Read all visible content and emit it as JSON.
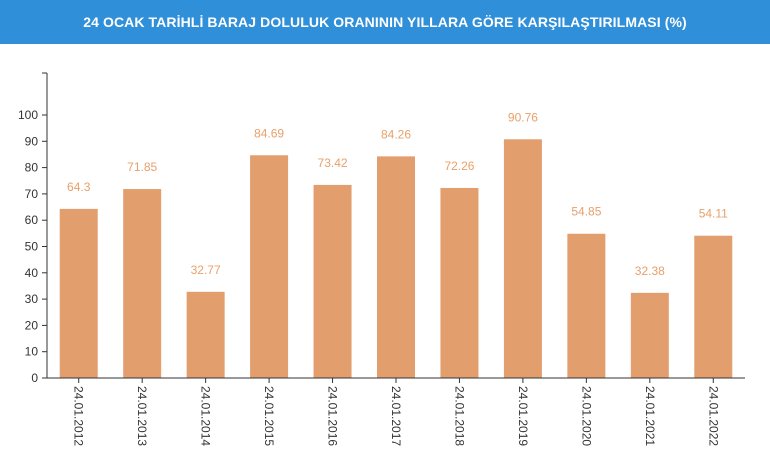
{
  "header": {
    "title": "24 OCAK TARİHLİ BARAJ DOLULUK ORANININ YILLARA GÖRE KARŞILAŞTIRILMASI (%)"
  },
  "colors": {
    "header_bg": "#2f8fd8",
    "bar": "#e39e6e",
    "data_label": "#e8a06a"
  },
  "chart_data": {
    "type": "bar",
    "title": "24 OCAK TARİHLİ BARAJ DOLULUK ORANININ YILLARA GÖRE KARŞILAŞTIRILMASI (%)",
    "categories": [
      "24.01.2012",
      "24.01.2013",
      "24.01.2014",
      "24.01.2015",
      "24.01.2016",
      "24.01.2017",
      "24.01.2018",
      "24.01.2019",
      "24.01.2020",
      "24.01.2021",
      "24.01.2022"
    ],
    "values": [
      64.3,
      71.85,
      32.77,
      84.69,
      73.42,
      84.26,
      72.26,
      90.76,
      54.85,
      32.38,
      54.11
    ],
    "data_labels": [
      "64.3",
      "71.85",
      "32.77",
      "84.69",
      "73.42",
      "84.26",
      "72.26",
      "90.76",
      "54.85",
      "32.38",
      "54.11"
    ],
    "yticks": [
      0,
      10,
      20,
      30,
      40,
      50,
      60,
      70,
      80,
      90,
      100
    ],
    "ylim": [
      0,
      100
    ],
    "xlabel": "",
    "ylabel": "",
    "grid": false,
    "legend": "none"
  }
}
